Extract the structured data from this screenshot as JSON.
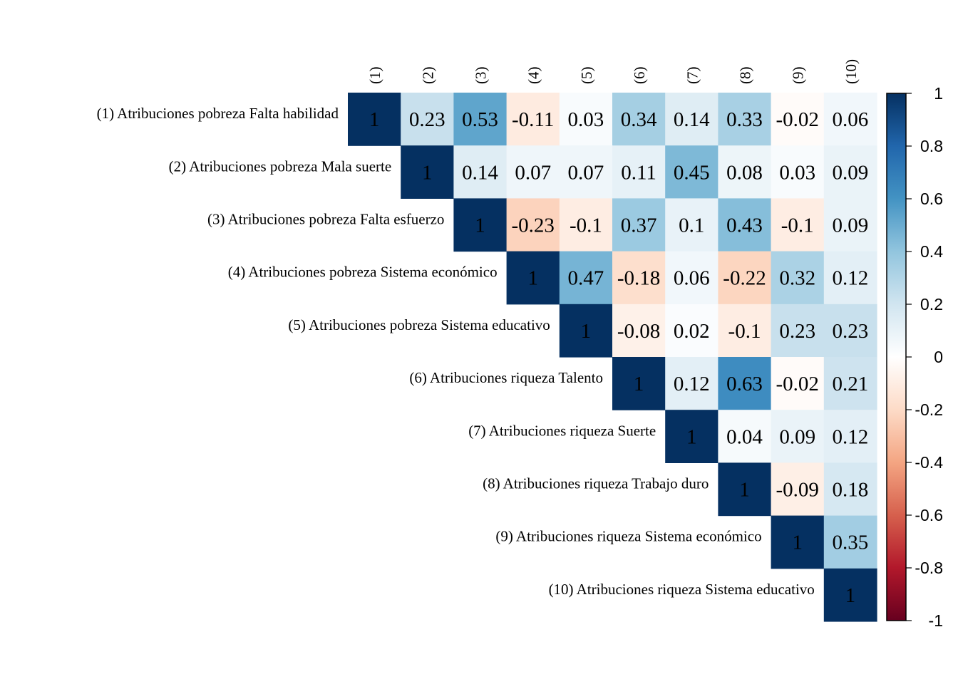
{
  "chart_data": {
    "type": "heatmap",
    "shape": "upper-triangular",
    "column_labels": [
      "(1)",
      "(2)",
      "(3)",
      "(4)",
      "(5)",
      "(6)",
      "(7)",
      "(8)",
      "(9)",
      "(10)"
    ],
    "row_labels": [
      "(1) Atribuciones pobreza Falta habilidad",
      "(2) Atribuciones pobreza Mala suerte",
      "(3) Atribuciones pobreza Falta esfuerzo",
      "(4) Atribuciones pobreza Sistema económico",
      "(5) Atribuciones pobreza Sistema educativo",
      "(6) Atribuciones riqueza Talento",
      "(7) Atribuciones riqueza Suerte",
      "(8) Atribuciones riqueza Trabajo duro",
      "(9) Atribuciones riqueza Sistema económico",
      "(10) Atribuciones riqueza Sistema educativo"
    ],
    "values": [
      [
        1,
        0.23,
        0.53,
        -0.11,
        0.03,
        0.34,
        0.14,
        0.33,
        -0.02,
        0.06
      ],
      [
        null,
        1,
        0.14,
        0.07,
        0.07,
        0.11,
        0.45,
        0.08,
        0.03,
        0.09
      ],
      [
        null,
        null,
        1,
        -0.23,
        -0.1,
        0.37,
        0.1,
        0.43,
        -0.1,
        0.09
      ],
      [
        null,
        null,
        null,
        1,
        0.47,
        -0.18,
        0.06,
        -0.22,
        0.32,
        0.12
      ],
      [
        null,
        null,
        null,
        null,
        1,
        -0.08,
        0.02,
        -0.1,
        0.23,
        0.23
      ],
      [
        null,
        null,
        null,
        null,
        null,
        1,
        0.12,
        0.63,
        -0.02,
        0.21
      ],
      [
        null,
        null,
        null,
        null,
        null,
        null,
        1,
        0.04,
        0.09,
        0.12
      ],
      [
        null,
        null,
        null,
        null,
        null,
        null,
        null,
        1,
        -0.09,
        0.18
      ],
      [
        null,
        null,
        null,
        null,
        null,
        null,
        null,
        null,
        1,
        0.35
      ],
      [
        null,
        null,
        null,
        null,
        null,
        null,
        null,
        null,
        null,
        1
      ]
    ],
    "color_scale": {
      "range": [
        -1,
        1
      ],
      "ticks": [
        1,
        0.8,
        0.6,
        0.4,
        0.2,
        0,
        -0.2,
        -0.4,
        -0.6,
        -0.8,
        -1
      ],
      "tick_labels": [
        "1",
        "0.8",
        "0.6",
        "0.4",
        "0.2",
        "0",
        "-0.2",
        "-0.4",
        "-0.6",
        "-0.8",
        "-1"
      ],
      "palette": [
        "#67001F",
        "#B2182B",
        "#D6604D",
        "#F4A582",
        "#FDDBC7",
        "#FFFFFF",
        "#D1E5F0",
        "#92C5DE",
        "#4393C3",
        "#2166AC",
        "#053061"
      ]
    },
    "legend_position": "right",
    "grid": false
  }
}
